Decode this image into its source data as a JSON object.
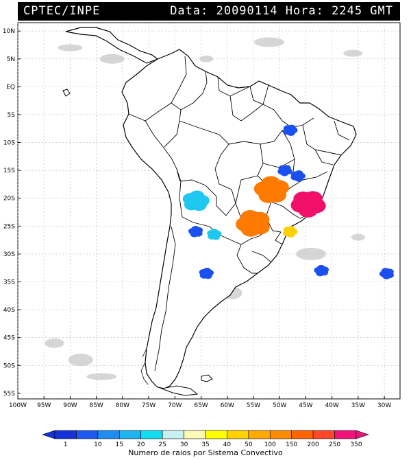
{
  "header": {
    "source": "CPTEC/INPE",
    "timestamp": "Data: 20090114 Hora: 2245 GMT"
  },
  "map": {
    "lat_labels": [
      "10N",
      "5N",
      "EQ",
      "5S",
      "10S",
      "15S",
      "20S",
      "25S",
      "30S",
      "35S",
      "40S",
      "45S",
      "50S",
      "55S"
    ],
    "lon_labels": [
      "100W",
      "95W",
      "90W",
      "85W",
      "80W",
      "75W",
      "70W",
      "65W",
      "60W",
      "55W",
      "50W",
      "45W",
      "40W",
      "35W",
      "30W"
    ],
    "lat_range": [
      11.5,
      -56
    ],
    "lon_range": [
      -100,
      -27
    ],
    "grid": true,
    "lightning_systems": [
      {
        "class": "1",
        "lon": -48.0,
        "lat": -7.8,
        "color": "#1a50f0"
      },
      {
        "class": "25",
        "lon": -66.0,
        "lat": -20.5,
        "color": "#1ec8f0"
      },
      {
        "class": "150",
        "lon": -51.5,
        "lat": -18.5,
        "color": "#ff7a00"
      },
      {
        "class": "200",
        "lon": -55.0,
        "lat": -24.5,
        "color": "#ff7a00"
      },
      {
        "class": "350",
        "lon": -44.5,
        "lat": -21.0,
        "color": "#f0106a"
      },
      {
        "class": "40",
        "lon": -48.0,
        "lat": -26.0,
        "color": "#ffd000"
      },
      {
        "class": "1",
        "lon": -64.0,
        "lat": -33.5,
        "color": "#1a50f0"
      },
      {
        "class": "1",
        "lon": -42.0,
        "lat": -33.0,
        "color": "#1a50f0"
      },
      {
        "class": "1",
        "lon": -29.5,
        "lat": -33.5,
        "color": "#1a50f0"
      },
      {
        "class": "10",
        "lon": -49.0,
        "lat": -15.0,
        "color": "#1a50f0"
      },
      {
        "class": "10",
        "lon": -46.5,
        "lat": -16.0,
        "color": "#1a50f0"
      },
      {
        "class": "20",
        "lon": -62.5,
        "lat": -26.5,
        "color": "#1ec8f0"
      },
      {
        "class": "10",
        "lon": -66.0,
        "lat": -26.0,
        "color": "#1a50f0"
      }
    ]
  },
  "legend": {
    "title": "Numero de raios por Sistema Convectivo",
    "classes": [
      "1",
      "10",
      "15",
      "20",
      "25",
      "30",
      "35",
      "40",
      "50",
      "100",
      "150",
      "200",
      "250",
      "350"
    ],
    "colors": [
      "#1432d8",
      "#1e5af0",
      "#1e8cf0",
      "#1eb4f0",
      "#14dcf0",
      "#c8f0f0",
      "#fafab4",
      "#ffff00",
      "#ffd200",
      "#ffaa00",
      "#ff8c00",
      "#ff6400",
      "#ff4628",
      "#f0147a"
    ]
  },
  "colors": {
    "frame": "#000000",
    "grid": "#b0b0b0",
    "cloud": "#c8c8c8"
  }
}
